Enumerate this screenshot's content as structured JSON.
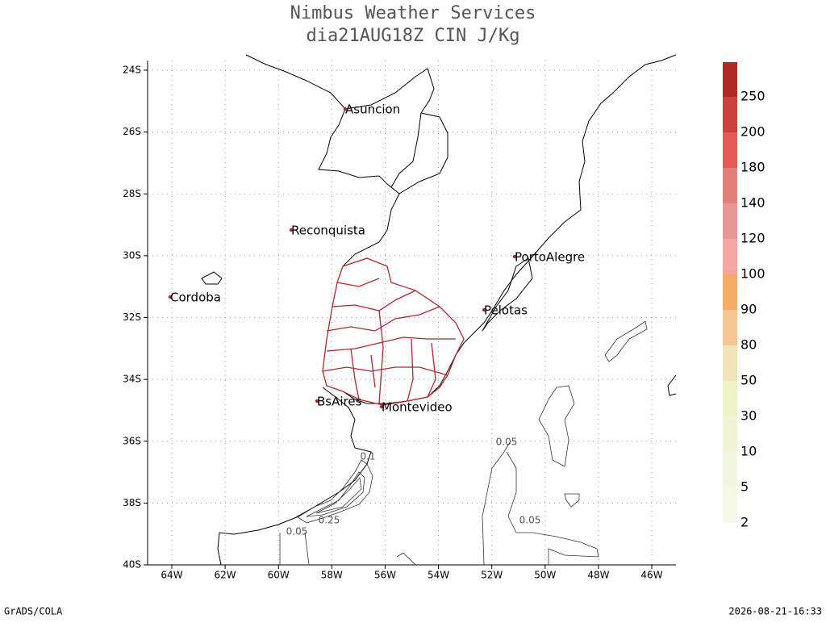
{
  "header": {
    "title": "Nimbus Weather Services",
    "subtitle": "dia21AUG18Z CIN J/Kg"
  },
  "lat_ticks": [
    "24S",
    "26S",
    "28S",
    "30S",
    "32S",
    "34S",
    "36S",
    "38S",
    "40S"
  ],
  "lon_ticks": [
    "64W",
    "62W",
    "60W",
    "58W",
    "56W",
    "54W",
    "52W",
    "50W",
    "48W",
    "46W"
  ],
  "cities": [
    "Asuncion",
    "Reconquista",
    "PortoAlegre",
    "Cordoba",
    "Pelotas",
    "BsAires",
    "Montevideo"
  ],
  "contour_labels": [
    "0.05",
    "0.1",
    "0.25",
    "0.05",
    "0.05"
  ],
  "colorbar": {
    "labels": [
      2,
      5,
      10,
      30,
      50,
      80,
      90,
      100,
      120,
      140,
      180,
      200,
      250
    ],
    "colors": [
      "#f6f8e9",
      "#f3f6e0",
      "#f1f4d4",
      "#eef2c9",
      "#efe5b8",
      "#f2c68e",
      "#f7aa66",
      "#f5a6a2",
      "#e69694",
      "#e57f7c",
      "#e55a56",
      "#c9403c",
      "#b02a26"
    ]
  },
  "footer": {
    "left": "GrADS/COLA",
    "right": "2026-08-21-16:33"
  }
}
